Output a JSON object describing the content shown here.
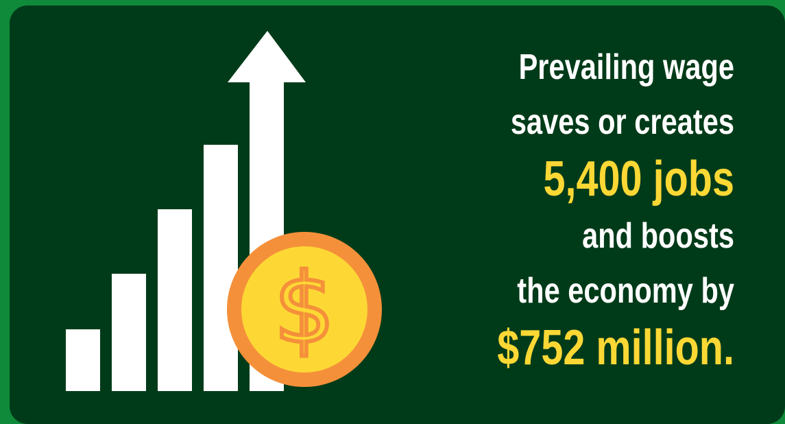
{
  "headline": {
    "line1": "Prevailing wage",
    "line2": "saves or creates",
    "line3": "5,400 jobs",
    "line4": "and boosts",
    "line5": "the economy by",
    "line6": "$752 million."
  },
  "coin": {
    "symbol": "$"
  },
  "colors": {
    "background": "#003b19",
    "frame": "#0f8a3a",
    "highlight": "#fdd835",
    "coin_face": "#fdd835",
    "coin_rim": "#f5903a"
  },
  "icons": [
    "growth-bars-icon",
    "up-arrow-icon",
    "dollar-coin-icon"
  ]
}
